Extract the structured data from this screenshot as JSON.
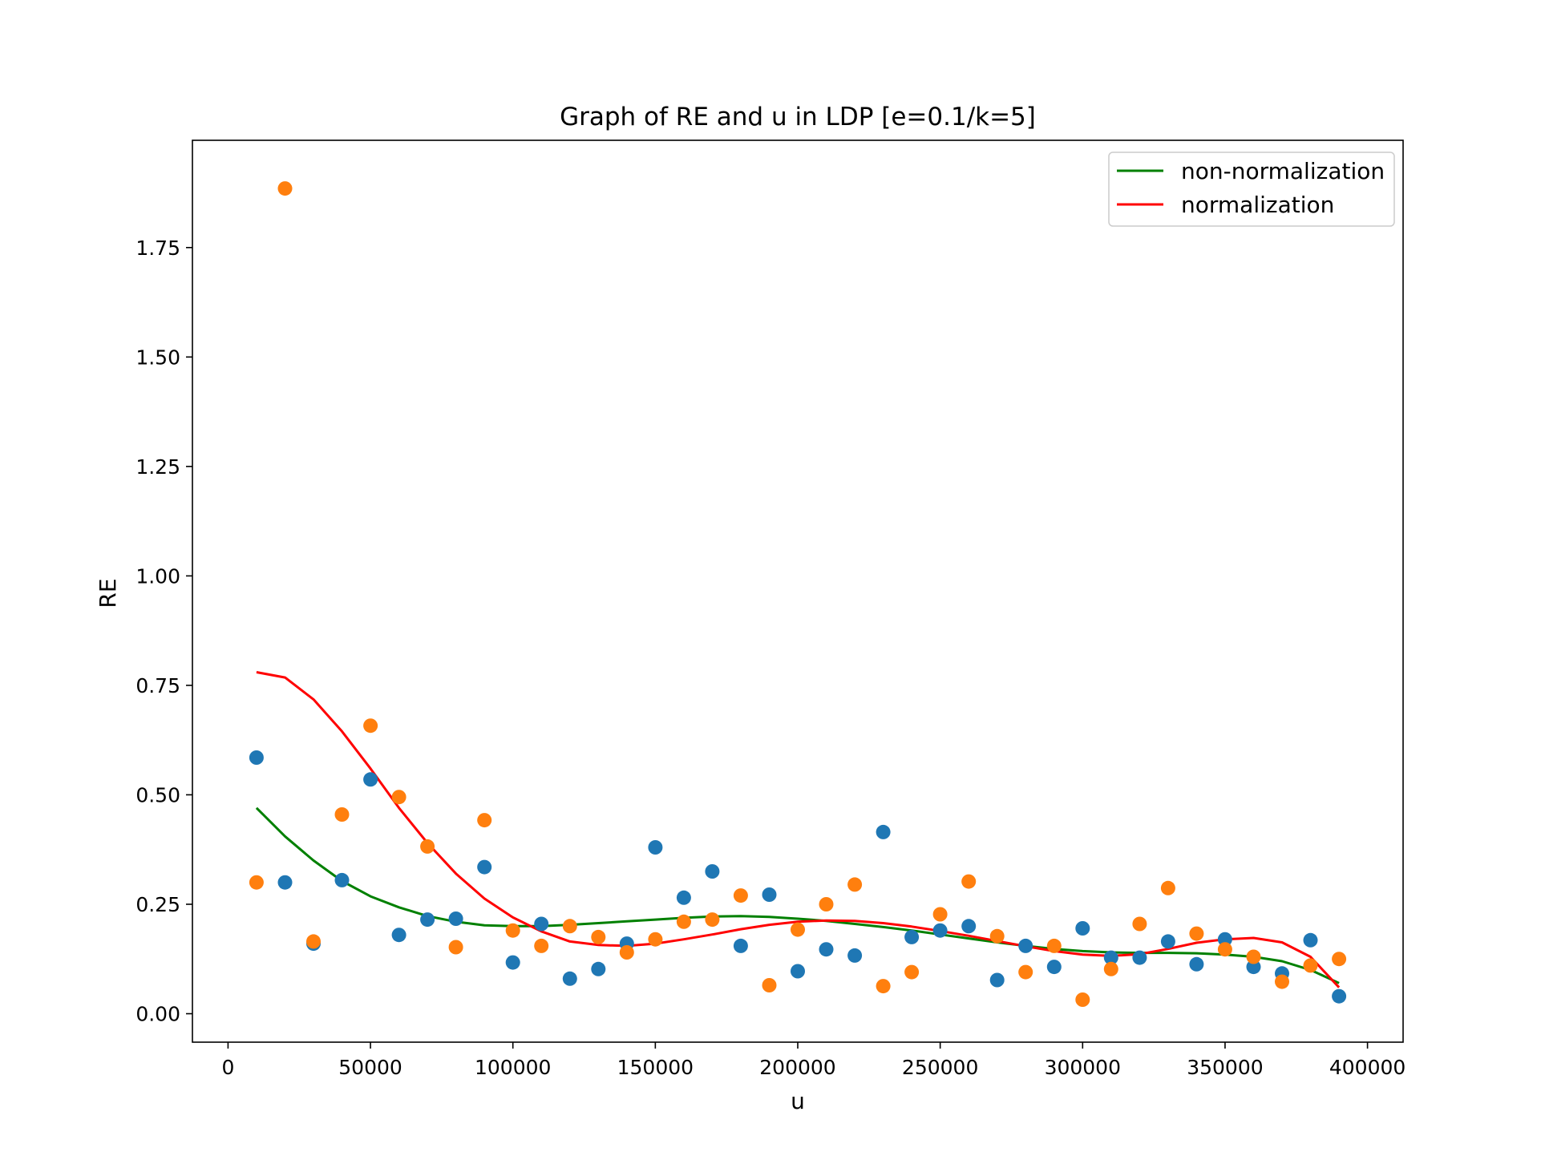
{
  "chart_data": {
    "type": "scatter",
    "title": "Graph of RE and u in LDP [e=0.1/k=5]",
    "xlabel": "u",
    "ylabel": "RE",
    "xlim": [
      -12500,
      412500
    ],
    "ylim": [
      -0.065,
      1.995
    ],
    "xticks": [
      0,
      50000,
      100000,
      150000,
      200000,
      250000,
      300000,
      350000,
      400000
    ],
    "yticks": [
      0.0,
      0.25,
      0.5,
      0.75,
      1.0,
      1.25,
      1.5,
      1.75
    ],
    "xtick_labels": [
      "0",
      "50000",
      "100000",
      "150000",
      "200000",
      "250000",
      "300000",
      "350000",
      "400000"
    ],
    "ytick_labels": [
      "0.00",
      "0.25",
      "0.50",
      "0.75",
      "1.00",
      "1.25",
      "1.50",
      "1.75"
    ],
    "grid": false,
    "legend_position": "top-right",
    "x": [
      10000,
      20000,
      30000,
      40000,
      50000,
      60000,
      70000,
      80000,
      90000,
      100000,
      110000,
      120000,
      130000,
      140000,
      150000,
      160000,
      170000,
      180000,
      190000,
      200000,
      210000,
      220000,
      230000,
      240000,
      250000,
      260000,
      270000,
      280000,
      290000,
      300000,
      310000,
      320000,
      330000,
      340000,
      350000,
      360000,
      370000,
      380000,
      390000
    ],
    "scatter_series": [
      {
        "color": "#1f77b4",
        "values": [
          0.585,
          0.3,
          0.16,
          0.305,
          0.535,
          0.18,
          0.215,
          0.217,
          0.335,
          0.117,
          0.205,
          0.08,
          0.102,
          0.16,
          0.38,
          0.265,
          0.325,
          0.155,
          0.272,
          0.097,
          0.147,
          0.133,
          0.415,
          0.175,
          0.19,
          0.2,
          0.077,
          0.155,
          0.107,
          0.195,
          0.128,
          0.128,
          0.165,
          0.113,
          0.17,
          0.107,
          0.092,
          0.168,
          0.04
        ]
      },
      {
        "color": "#ff7f0e",
        "values": [
          0.3,
          1.885,
          0.165,
          0.455,
          0.658,
          0.495,
          0.382,
          0.152,
          0.442,
          0.19,
          0.155,
          0.2,
          0.175,
          0.14,
          0.17,
          0.21,
          0.215,
          0.27,
          0.065,
          0.192,
          0.25,
          0.295,
          0.063,
          0.095,
          0.227,
          0.302,
          0.177,
          0.095,
          0.155,
          0.032,
          0.102,
          0.205,
          0.287,
          0.183,
          0.147,
          0.13,
          0.073,
          0.11,
          0.125
        ]
      }
    ],
    "series": [
      {
        "name": "non-normalization",
        "type": "line",
        "color": "#008000",
        "values": [
          0.47,
          0.405,
          0.35,
          0.303,
          0.268,
          0.243,
          0.223,
          0.21,
          0.202,
          0.2,
          0.2,
          0.203,
          0.207,
          0.211,
          0.215,
          0.219,
          0.222,
          0.223,
          0.221,
          0.217,
          0.212,
          0.205,
          0.198,
          0.19,
          0.181,
          0.172,
          0.163,
          0.155,
          0.148,
          0.143,
          0.14,
          0.139,
          0.139,
          0.138,
          0.135,
          0.13,
          0.12,
          0.1,
          0.07
        ]
      },
      {
        "name": "normalization",
        "type": "line",
        "color": "#ff0000",
        "values": [
          0.78,
          0.768,
          0.718,
          0.645,
          0.56,
          0.47,
          0.39,
          0.32,
          0.263,
          0.22,
          0.188,
          0.165,
          0.157,
          0.155,
          0.16,
          0.17,
          0.181,
          0.193,
          0.203,
          0.21,
          0.213,
          0.212,
          0.207,
          0.199,
          0.189,
          0.178,
          0.166,
          0.154,
          0.143,
          0.135,
          0.132,
          0.136,
          0.148,
          0.162,
          0.17,
          0.173,
          0.163,
          0.13,
          0.06
        ]
      }
    ]
  }
}
